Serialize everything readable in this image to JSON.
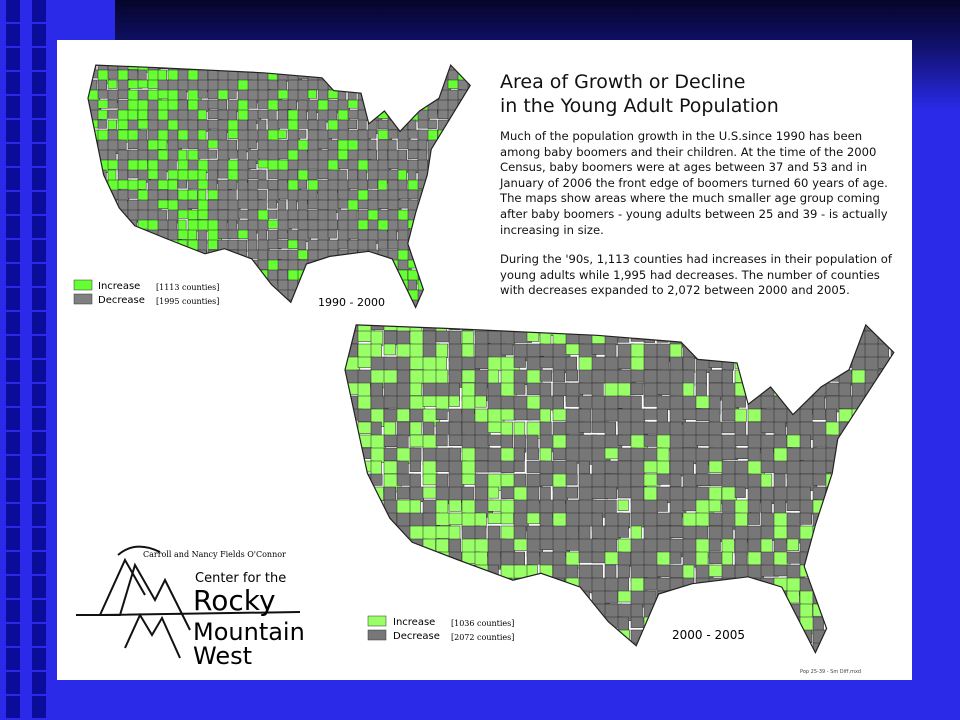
{
  "header": {
    "title_line1": "Area of Growth or Decline",
    "title_line2": "in the Young Adult Population"
  },
  "body": {
    "paragraph1": "Much of the population growth in the U.S.since 1990 has been among baby boomers and their children. At the time of the 2000 Census, baby boomers were at ages between 37 and 53 and in January of 2006 the front edge of boomers turned 60 years of age. The maps show areas where the much smaller age group coming after baby boomers - young adults between 25 and 39 - is actually increasing in size.",
    "paragraph2": "During the '90s, 1,113 counties had increases in their population of young adults while 1,995 had decreases. The number of counties with decreases expanded to 2,072 between 2000 and 2005."
  },
  "maps": [
    {
      "label": "1990 - 2000",
      "legend": [
        {
          "name": "Increase",
          "count": "[1113 counties]",
          "color": "#66ff33"
        },
        {
          "name": "Decrease",
          "count": "[1995 counties]",
          "color": "#808080"
        }
      ]
    },
    {
      "label": "2000 - 2005",
      "legend": [
        {
          "name": "Increase",
          "count": "[1036 counties]",
          "color": "#99ff66"
        },
        {
          "name": "Decrease",
          "count": "[2072 counties]",
          "color": "#777777"
        }
      ]
    }
  ],
  "logo": {
    "sponsor": "Carroll and Nancy Fields O'Connor",
    "line1": "Center for the",
    "line2": "Rocky",
    "line3": "Mountain",
    "line4": "West"
  },
  "footer": {
    "file": "Pop 25-39 - Sm Diff.mxd"
  }
}
